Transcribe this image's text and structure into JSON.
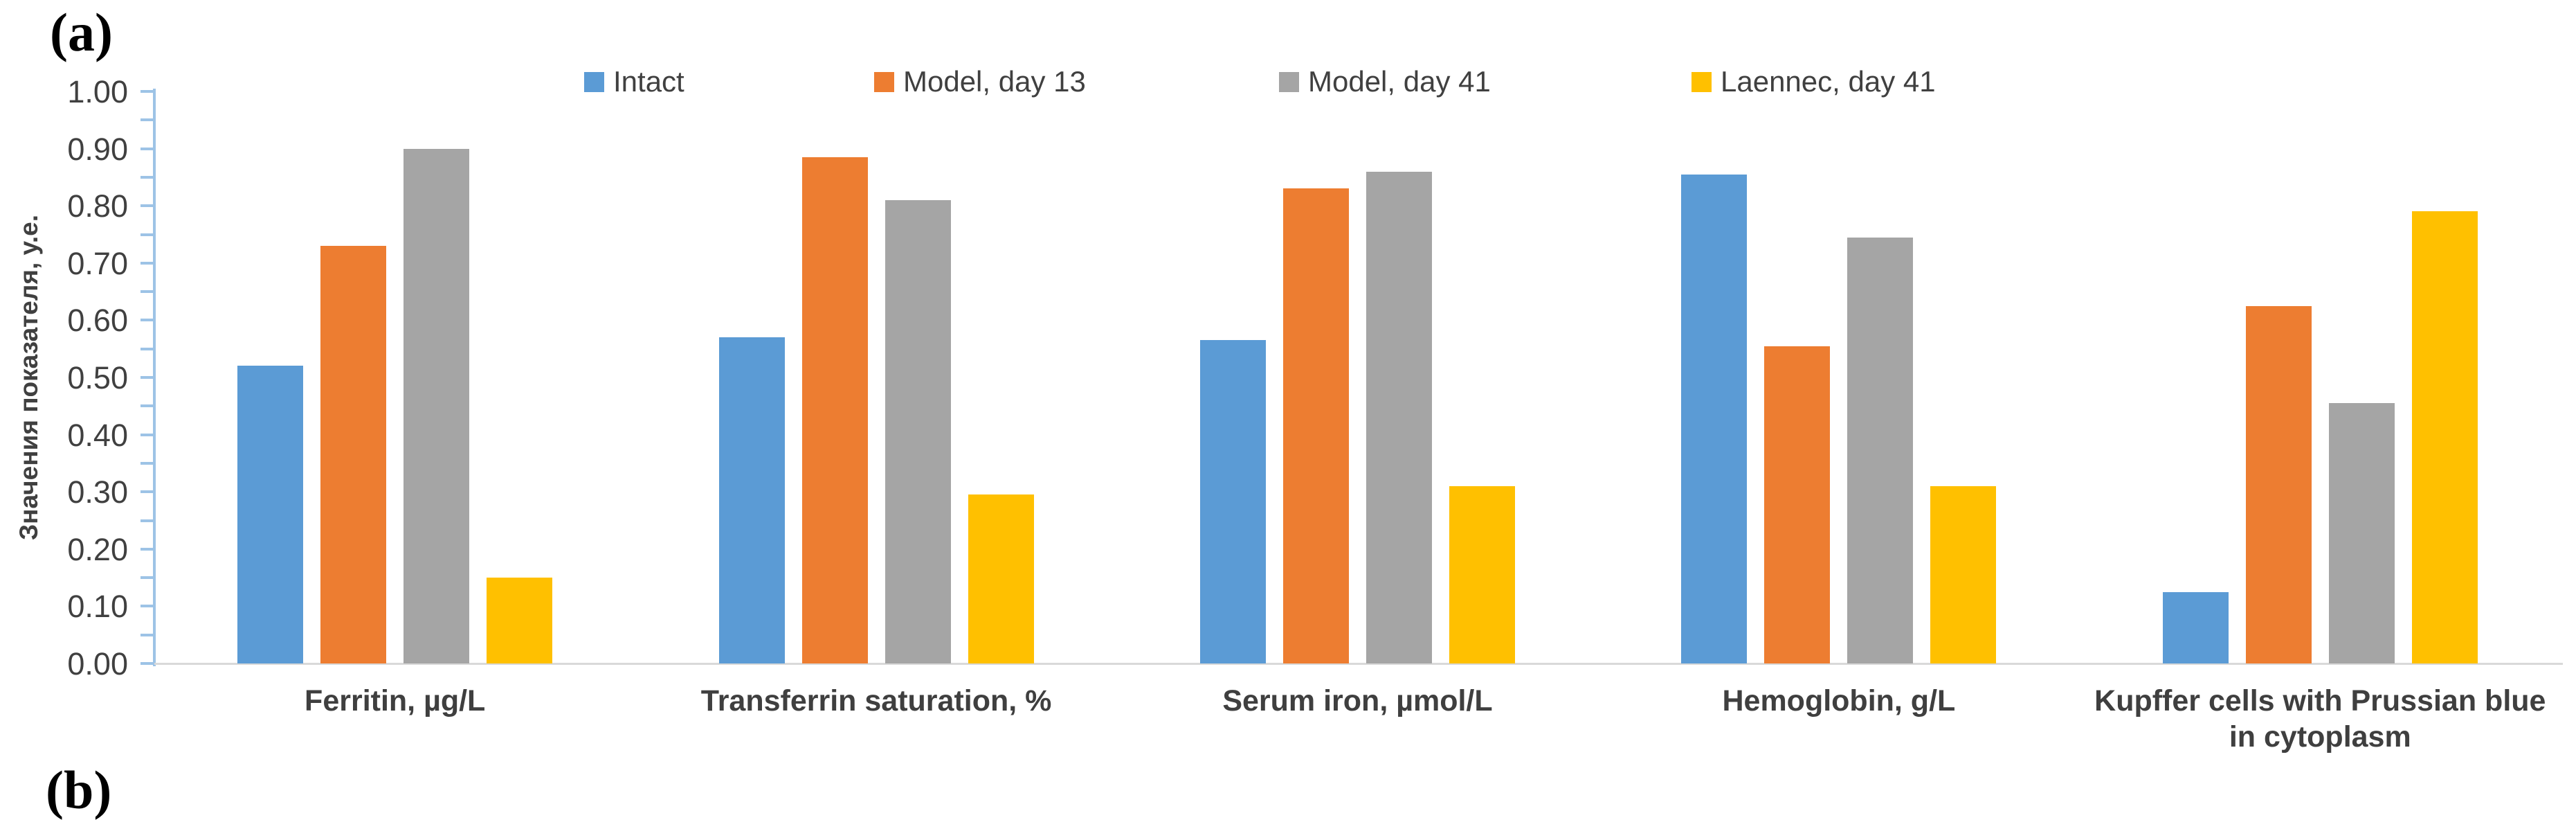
{
  "panel_labels": {
    "a": "(a)",
    "b": "(b)"
  },
  "chart_data": {
    "type": "bar",
    "title": "",
    "y_axis_title": "Значения показателя, у.е.",
    "xlabel": "",
    "ylabel": "Значения показателя, у.е.",
    "ylim": [
      0,
      1.0
    ],
    "y_tick_step": 0.1,
    "y_minor_tick_step": 0.05,
    "y_tick_labels": [
      "0.00",
      "0.10",
      "0.20",
      "0.30",
      "0.40",
      "0.50",
      "0.60",
      "0.70",
      "0.80",
      "0.90",
      "1.00"
    ],
    "grid": false,
    "legend_position": "top",
    "categories": [
      "Ferritin, µg/L",
      "Transferrin saturation, %",
      "Serum iron, µmol/L",
      "Hemoglobin, g/L",
      "Kupffer cells with Prussian blue in cytoplasm"
    ],
    "series": [
      {
        "name": "Intact",
        "color": "#5B9BD5",
        "values": [
          0.52,
          0.57,
          0.565,
          0.855,
          0.125
        ]
      },
      {
        "name": "Model, day 13",
        "color": "#ED7D31",
        "values": [
          0.73,
          0.885,
          0.83,
          0.555,
          0.625
        ]
      },
      {
        "name": "Model, day 41",
        "color": "#A5A5A5",
        "values": [
          0.9,
          0.81,
          0.86,
          0.745,
          0.455
        ]
      },
      {
        "name": "Laennec, day 41",
        "color": "#FFC000",
        "values": [
          0.15,
          0.295,
          0.31,
          0.31,
          0.79
        ]
      }
    ]
  },
  "colors": {
    "axis": "#9DC3E6",
    "baseline": "#D9D9D9",
    "text": "#404040"
  }
}
